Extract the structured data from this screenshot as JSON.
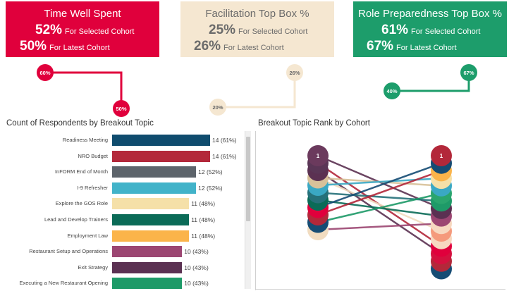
{
  "kpis": [
    {
      "title": "Time Well Spent",
      "selected_value": "52%",
      "selected_label": "For Selected Cohort",
      "latest_value": "50%",
      "latest_label": "For Latest Cohort"
    },
    {
      "title": "Facilitation Top Box %",
      "selected_value": "25%",
      "selected_label": "For Selected Cohort",
      "latest_value": "26%",
      "latest_label": "For Latest Cohort"
    },
    {
      "title": "Role Preparedness Top Box %",
      "selected_value": "61%",
      "selected_label": "For Selected Cohort",
      "latest_value": "67%",
      "latest_label": "For Latest Cohort"
    }
  ],
  "sparks": [
    {
      "a": "60%",
      "b": "50%",
      "color": "#e0003c",
      "text": "#ffffff"
    },
    {
      "a": "20%",
      "b": "26%",
      "color": "#f5e7d1",
      "text": "#666666"
    },
    {
      "a": "40%",
      "b": "67%",
      "color": "#1d9d6b",
      "text": "#ffffff"
    }
  ],
  "bar_panel": {
    "title": "Count of Respondents by Breakout Topic"
  },
  "rank_panel": {
    "title": "Breakout Topic Rank by Cohort"
  },
  "chart_data": [
    {
      "type": "bar",
      "title": "Count of Respondents by Breakout Topic",
      "categories": [
        "Readiness Meeting",
        "NRO Budget",
        "InFORM End of Month",
        "I-9 Refresher",
        "Explore the GOS Role",
        "Lead and Develop Trainers",
        "Employment Law",
        "Restaurant Setup and Operations",
        "Exit Strategy",
        "Executing a New Restaurant Opening"
      ],
      "values": [
        14,
        14,
        12,
        12,
        11,
        11,
        11,
        10,
        10,
        10
      ],
      "labels": [
        "14 (61%)",
        "14 (61%)",
        "12 (52%)",
        "12 (52%)",
        "11 (48%)",
        "11 (48%)",
        "11 (48%)",
        "10 (43%)",
        "10 (43%)",
        "10 (43%)"
      ],
      "colors": [
        "#0f4c6e",
        "#b3283a",
        "#5d646b",
        "#42b3c9",
        "#f5e0a8",
        "#0b6b57",
        "#fbb44a",
        "#9c4672",
        "#5b3152",
        "#1e9a68"
      ]
    },
    {
      "type": "line",
      "title": "Breakout Topic Rank by Cohort",
      "left_ranks": [
        "1",
        "2",
        "3",
        "4",
        "5",
        "6",
        "7",
        "8",
        "9",
        "10",
        "11"
      ],
      "right_ranks": [
        "1",
        "2",
        "3",
        "4",
        "5",
        "6",
        "7",
        "8",
        "9",
        "10",
        "11",
        "12",
        "13",
        "14",
        "15",
        "16"
      ]
    }
  ]
}
